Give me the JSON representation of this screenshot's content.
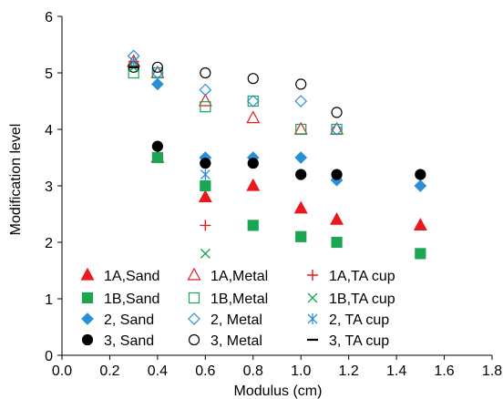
{
  "chart_data": {
    "type": "scatter",
    "title": "",
    "xlabel": "Modulus (cm)",
    "ylabel": "Modification level",
    "xlim": [
      0.0,
      1.8
    ],
    "ylim": [
      0,
      6
    ],
    "xticks": [
      "0.0",
      "0.2",
      "0.4",
      "0.6",
      "0.8",
      "1.0",
      "1.2",
      "1.4",
      "1.6",
      "1.8"
    ],
    "yticks": [
      "0",
      "1",
      "2",
      "3",
      "4",
      "5",
      "6"
    ],
    "grid": false,
    "legend_position": "bottom-left",
    "series": [
      {
        "name": "1A,Sand",
        "marker": "triangle-filled",
        "color": "#e8191f",
        "points": [
          [
            0.4,
            3.5
          ],
          [
            0.6,
            2.8
          ],
          [
            0.8,
            3.0
          ],
          [
            1.0,
            2.6
          ],
          [
            1.15,
            2.4
          ],
          [
            1.5,
            2.3
          ]
        ]
      },
      {
        "name": "1B,Sand",
        "marker": "square-filled",
        "color": "#1aa652",
        "points": [
          [
            0.4,
            3.5
          ],
          [
            0.6,
            3.0
          ],
          [
            0.8,
            2.3
          ],
          [
            1.0,
            2.1
          ],
          [
            1.15,
            2.0
          ],
          [
            1.5,
            1.8
          ]
        ]
      },
      {
        "name": "2,  Sand",
        "marker": "diamond-filled",
        "color": "#2a8fd6",
        "points": [
          [
            0.4,
            4.8
          ],
          [
            0.6,
            3.5
          ],
          [
            0.8,
            3.5
          ],
          [
            1.0,
            3.5
          ],
          [
            1.15,
            3.1
          ],
          [
            1.5,
            3.0
          ]
        ]
      },
      {
        "name": "3,  Sand",
        "marker": "circle-filled",
        "color": "#000000",
        "points": [
          [
            0.4,
            3.7
          ],
          [
            0.6,
            3.4
          ],
          [
            0.8,
            3.4
          ],
          [
            1.0,
            3.2
          ],
          [
            1.15,
            3.2
          ],
          [
            1.5,
            3.2
          ]
        ]
      },
      {
        "name": "1A,Metal",
        "marker": "triangle-open",
        "color": "#e8191f",
        "points": [
          [
            0.3,
            5.2
          ],
          [
            0.4,
            5.0
          ],
          [
            0.6,
            4.5
          ],
          [
            0.8,
            4.2
          ],
          [
            1.0,
            4.0
          ],
          [
            1.15,
            4.0
          ]
        ]
      },
      {
        "name": "1B,Metal",
        "marker": "square-open",
        "color": "#1aa652",
        "points": [
          [
            0.3,
            5.0
          ],
          [
            0.4,
            5.0
          ],
          [
            0.6,
            4.4
          ],
          [
            0.8,
            4.5
          ],
          [
            1.0,
            4.0
          ],
          [
            1.15,
            4.0
          ]
        ]
      },
      {
        "name": "2,  Metal",
        "marker": "diamond-open",
        "color": "#2a8fd6",
        "points": [
          [
            0.3,
            5.3
          ],
          [
            0.4,
            5.0
          ],
          [
            0.6,
            4.7
          ],
          [
            0.8,
            4.5
          ],
          [
            1.0,
            4.5
          ],
          [
            1.15,
            4.0
          ]
        ]
      },
      {
        "name": "3,  Metal",
        "marker": "circle-open",
        "color": "#000000",
        "points": [
          [
            0.3,
            5.1
          ],
          [
            0.4,
            5.1
          ],
          [
            0.6,
            5.0
          ],
          [
            0.8,
            4.9
          ],
          [
            1.0,
            4.8
          ],
          [
            1.15,
            4.3
          ]
        ]
      },
      {
        "name": "1A,TA cup",
        "marker": "plus",
        "color": "#e8191f",
        "points": [
          [
            0.3,
            5.2
          ],
          [
            0.6,
            2.3
          ]
        ]
      },
      {
        "name": "1B,TA cup",
        "marker": "cross",
        "color": "#1aa652",
        "points": [
          [
            0.3,
            5.1
          ],
          [
            0.6,
            1.8
          ]
        ]
      },
      {
        "name": "2,  TA cup",
        "marker": "asterisk",
        "color": "#2a8fd6",
        "points": [
          [
            0.3,
            5.2
          ],
          [
            0.6,
            3.2
          ]
        ]
      },
      {
        "name": "3,  TA cup",
        "marker": "dash",
        "color": "#000000",
        "points": [
          [
            0.3,
            5.1
          ],
          [
            0.6,
            3.4
          ]
        ]
      }
    ]
  }
}
